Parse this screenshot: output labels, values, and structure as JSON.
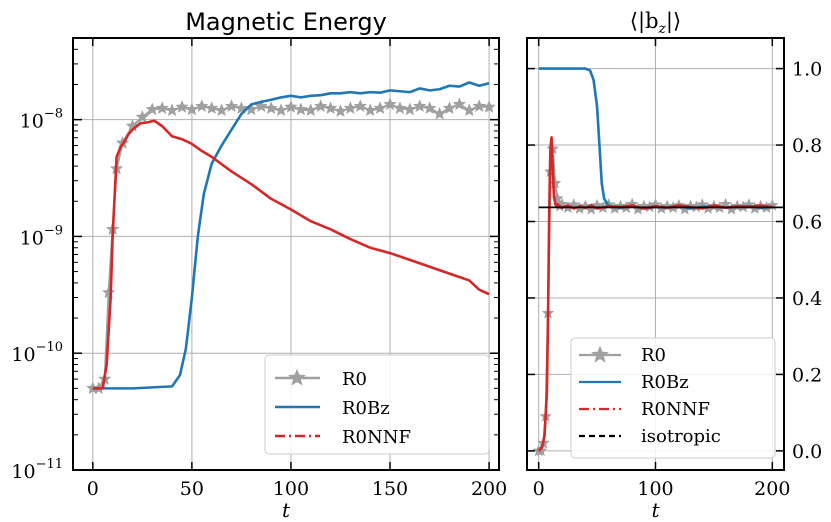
{
  "colors": {
    "R0": "#a0a0a0",
    "R0Bz": "#1f77b4",
    "R0NNF": "#d62728",
    "isotropic": "#000000",
    "grid": "#b0b0b0"
  },
  "chart_data": [
    {
      "type": "line",
      "title": "Magnetic Energy",
      "xlabel": "t",
      "ylabel": "",
      "yscale": "log",
      "xlim": [
        -10,
        205
      ],
      "ylim": [
        1e-11,
        5e-08
      ],
      "xticks": [
        "0",
        "50",
        "100",
        "150",
        "200"
      ],
      "yticks": [
        {
          "base": "10",
          "exp": "−8",
          "value": 1e-08
        },
        {
          "base": "10",
          "exp": "−9",
          "value": 1e-09
        },
        {
          "base": "10",
          "exp": "−10",
          "value": 1e-10
        },
        {
          "base": "10",
          "exp": "−11",
          "value": 1e-11
        }
      ],
      "grid": true,
      "legend": "bottom-right",
      "series": [
        {
          "name": "R0",
          "style": "solid-star",
          "x": [
            0,
            3,
            6,
            8,
            10,
            12,
            15,
            20,
            25,
            30,
            35,
            40,
            45,
            50,
            55,
            60,
            65,
            70,
            75,
            80,
            85,
            90,
            95,
            100,
            105,
            110,
            115,
            120,
            125,
            130,
            135,
            140,
            145,
            150,
            155,
            160,
            165,
            170,
            175,
            180,
            185,
            190,
            195,
            200
          ],
          "y": [
            5e-11,
            5e-11,
            6e-11,
            3.3e-10,
            1.15e-09,
            3.8e-09,
            6.3e-09,
            8.8e-09,
            1.05e-08,
            1.22e-08,
            1.25e-08,
            1.2e-08,
            1.28e-08,
            1.22e-08,
            1.3e-08,
            1.25e-08,
            1.2e-08,
            1.3e-08,
            1.25e-08,
            1.22e-08,
            1.3e-08,
            1.25e-08,
            1.2e-08,
            1.28e-08,
            1.22e-08,
            1.2e-08,
            1.3e-08,
            1.25e-08,
            1.18e-08,
            1.25e-08,
            1.3e-08,
            1.2e-08,
            1.25e-08,
            1.35e-08,
            1.25e-08,
            1.22e-08,
            1.3e-08,
            1.25e-08,
            1.12e-08,
            1.25e-08,
            1.35e-08,
            1.2e-08,
            1.3e-08,
            1.28e-08
          ]
        },
        {
          "name": "R0Bz",
          "style": "solid",
          "x": [
            0,
            20,
            40,
            44,
            47,
            50,
            53,
            56,
            60,
            65,
            70,
            75,
            80,
            85,
            90,
            95,
            100,
            105,
            110,
            115,
            120,
            125,
            130,
            135,
            140,
            145,
            150,
            155,
            160,
            165,
            170,
            175,
            180,
            185,
            190,
            195,
            200
          ],
          "y": [
            5e-11,
            5e-11,
            5.2e-11,
            6.5e-11,
            1.1e-10,
            3e-10,
            1e-09,
            2.3e-09,
            4.2e-09,
            6e-09,
            8.2e-09,
            1.12e-08,
            1.35e-08,
            1.42e-08,
            1.48e-08,
            1.55e-08,
            1.6e-08,
            1.55e-08,
            1.6e-08,
            1.62e-08,
            1.68e-08,
            1.68e-08,
            1.72e-08,
            1.68e-08,
            1.72e-08,
            1.7e-08,
            1.78e-08,
            1.75e-08,
            1.72e-08,
            1.85e-08,
            1.78e-08,
            1.82e-08,
            1.95e-08,
            1.92e-08,
            2.08e-08,
            1.95e-08,
            2.05e-08
          ]
        },
        {
          "name": "R0NNF",
          "style": "solid",
          "x": [
            0,
            5,
            7,
            9,
            10,
            11,
            12,
            14,
            16,
            18,
            20,
            24,
            28,
            31,
            35,
            40,
            45,
            50,
            55,
            60,
            70,
            80,
            90,
            100,
            110,
            120,
            130,
            140,
            150,
            160,
            170,
            180,
            190,
            195,
            200
          ],
          "y": [
            5e-11,
            5e-11,
            8e-11,
            3e-10,
            1e-09,
            2.2e-09,
            4.8e-09,
            5.8e-09,
            6.5e-09,
            7.5e-09,
            8.2e-09,
            9.3e-09,
            9.5e-09,
            9.8e-09,
            8.8e-09,
            7.2e-09,
            6.8e-09,
            6.2e-09,
            5.4e-09,
            4.8e-09,
            3.6e-09,
            2.8e-09,
            2.1e-09,
            1.7e-09,
            1.35e-09,
            1.15e-09,
            9.5e-10,
            8e-10,
            7.2e-10,
            6.3e-10,
            5.5e-10,
            4.8e-10,
            4.2e-10,
            3.5e-10,
            3.2e-10
          ]
        }
      ]
    },
    {
      "type": "line",
      "title": "⟨|b",
      "title_sub": "z",
      "title_end": "|⟩",
      "xlabel": "t",
      "ylabel": "",
      "xlim": [
        -10,
        210
      ],
      "ylim": [
        -0.05,
        1.08
      ],
      "xticks": [
        "0",
        "100",
        "200"
      ],
      "yticks": [
        "0.0",
        "0.2",
        "0.4",
        "0.6",
        "0.8",
        "1.0"
      ],
      "grid": true,
      "legend": "bottom-right",
      "series": [
        {
          "name": "R0",
          "style": "solid-star",
          "x": [
            0,
            2,
            4,
            6,
            8,
            10,
            12,
            14,
            16,
            18,
            20,
            25,
            30,
            35,
            40,
            45,
            50,
            55,
            60,
            65,
            70,
            75,
            80,
            85,
            90,
            95,
            100,
            105,
            110,
            115,
            120,
            125,
            130,
            135,
            140,
            145,
            150,
            155,
            160,
            165,
            170,
            175,
            180,
            185,
            190,
            195,
            200
          ],
          "y": [
            0.0,
            0.0,
            0.02,
            0.09,
            0.36,
            0.73,
            0.79,
            0.7,
            0.66,
            0.64,
            0.645,
            0.636,
            0.644,
            0.634,
            0.64,
            0.632,
            0.642,
            0.636,
            0.644,
            0.634,
            0.64,
            0.636,
            0.645,
            0.632,
            0.64,
            0.638,
            0.644,
            0.634,
            0.64,
            0.636,
            0.642,
            0.632,
            0.64,
            0.638,
            0.644,
            0.634,
            0.64,
            0.636,
            0.645,
            0.632,
            0.64,
            0.638,
            0.644,
            0.634,
            0.64,
            0.636,
            0.642
          ]
        },
        {
          "name": "R0Bz",
          "style": "solid",
          "x": [
            0,
            20,
            40,
            44,
            47,
            50,
            52,
            54,
            56,
            60,
            70,
            80,
            90,
            100,
            110,
            120,
            130,
            140,
            150,
            160,
            170,
            180,
            190,
            200
          ],
          "y": [
            1.0,
            1.0,
            1.0,
            0.995,
            0.97,
            0.9,
            0.8,
            0.7,
            0.66,
            0.64,
            0.636,
            0.64,
            0.634,
            0.638,
            0.636,
            0.64,
            0.634,
            0.638,
            0.64,
            0.636,
            0.638,
            0.64,
            0.636,
            0.638
          ]
        },
        {
          "name": "R0NNF",
          "style": "solid",
          "x": [
            0,
            3,
            5,
            7,
            8,
            9,
            10,
            11,
            12,
            13,
            14,
            15,
            16,
            18,
            20,
            25,
            30,
            35,
            40,
            45,
            50,
            60,
            70,
            80,
            90,
            100,
            110,
            120,
            130,
            140,
            150,
            160,
            170,
            180,
            190,
            200
          ],
          "y": [
            0.0,
            0.01,
            0.04,
            0.15,
            0.35,
            0.62,
            0.79,
            0.82,
            0.74,
            0.67,
            0.65,
            0.64,
            0.645,
            0.64,
            0.636,
            0.642,
            0.634,
            0.64,
            0.636,
            0.642,
            0.634,
            0.64,
            0.638,
            0.642,
            0.634,
            0.64,
            0.636,
            0.642,
            0.638,
            0.634,
            0.642,
            0.636,
            0.64,
            0.638,
            0.642,
            0.638
          ]
        },
        {
          "name": "isotropic",
          "style": "dashed",
          "x": [
            0,
            210
          ],
          "y": [
            0.637,
            0.637
          ]
        }
      ]
    }
  ],
  "legends": {
    "left": [
      "R0",
      "R0Bz",
      "R0NNF"
    ],
    "right": [
      "R0",
      "R0Bz",
      "R0NNF",
      "isotropic"
    ]
  }
}
